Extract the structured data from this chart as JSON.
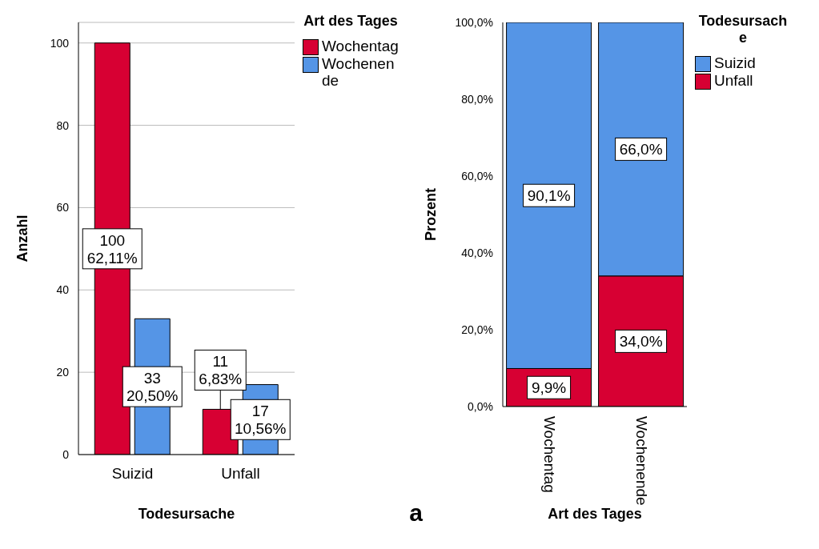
{
  "chart_data": [
    {
      "type": "bar",
      "categories": [
        "Suizid",
        "Unfall"
      ],
      "xlabel": "Todesursache",
      "ylabel": "Anzahl",
      "legend_title": "Art des Tages",
      "ylim": [
        0,
        105
      ],
      "yticks": [
        0,
        20,
        40,
        60,
        80,
        100
      ],
      "grid": "y",
      "legend": "top right",
      "annotations": [
        "a"
      ],
      "series": [
        {
          "name": "Wochentag",
          "color": "#d70033",
          "values": [
            100,
            11
          ],
          "value_labels": [
            "100\n62,11%",
            "11\n6,83%"
          ]
        },
        {
          "name": "Wochenende",
          "color": "#5595e6",
          "values": [
            33,
            17
          ],
          "value_labels": [
            "33\n20,50%",
            "17\n10,56%"
          ]
        }
      ]
    },
    {
      "type": "bar",
      "stacked": true,
      "categories": [
        "Wochentag",
        "Wochenende"
      ],
      "xlabel": "Art des Tages",
      "ylabel": "Prozent",
      "legend_title": "Todesursache",
      "ylim": [
        0,
        100
      ],
      "yticks": [
        {
          "value": 0,
          "label": "0,0%"
        },
        {
          "value": 20,
          "label": "20,0%"
        },
        {
          "value": 40,
          "label": "40,0%"
        },
        {
          "value": 60,
          "label": "60,0%"
        },
        {
          "value": 80,
          "label": "80,0%"
        },
        {
          "value": 100,
          "label": "100,0%"
        }
      ],
      "legend": "top right",
      "series": [
        {
          "name": "Unfall",
          "color": "#d70033",
          "values": [
            9.9,
            34.0
          ],
          "value_labels": [
            "9,9%",
            "34,0%"
          ]
        },
        {
          "name": "Suizid",
          "color": "#5595e6",
          "values": [
            90.1,
            66.0
          ],
          "value_labels": [
            "90,1%",
            "66,0%"
          ]
        }
      ]
    }
  ]
}
